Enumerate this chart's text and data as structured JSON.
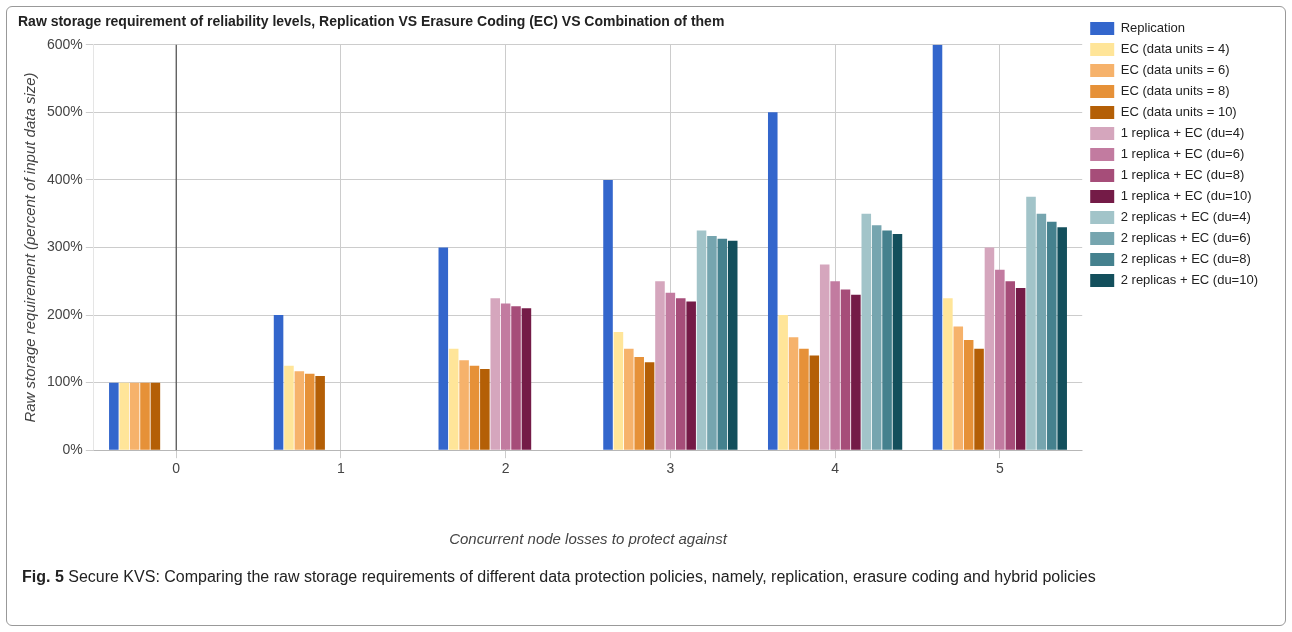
{
  "chart_data": {
    "type": "bar",
    "title": "Raw storage requirement of reliability levels, Replication VS Erasure Coding (EC) VS Combination of them",
    "xlabel": "Concurrent node losses to protect against",
    "ylabel": "Raw storage requirement (percent of input data size)",
    "categories": [
      "0",
      "1",
      "2",
      "3",
      "4",
      "5"
    ],
    "ylim": [
      0,
      600
    ],
    "yticks": [
      {
        "value": 0,
        "label": "0%"
      },
      {
        "value": 100,
        "label": "100%"
      },
      {
        "value": 200,
        "label": "200%"
      },
      {
        "value": 300,
        "label": "300%"
      },
      {
        "value": 400,
        "label": "400%"
      },
      {
        "value": 500,
        "label": "500%"
      },
      {
        "value": 600,
        "label": "600%"
      }
    ],
    "grid": true,
    "legend": "right",
    "ref_lines": [
      {
        "axis": "x",
        "value": "0",
        "color": "#333333"
      }
    ],
    "annotations": [
      "Fig. 5 Secure KVS: Comparing the raw storage requirements of different data protection policies, namely, replication, erasure coding and hybrid policies"
    ],
    "series": [
      {
        "name": "Replication",
        "color": "#3366cc",
        "values": [
          100,
          200,
          300,
          400,
          500,
          600
        ]
      },
      {
        "name": "EC (data units = 4)",
        "color": "#ffe599",
        "values": [
          100,
          125,
          150,
          175,
          200,
          225
        ]
      },
      {
        "name": "EC (data units = 6)",
        "color": "#f6b26b",
        "values": [
          100,
          117,
          133,
          150,
          167,
          183
        ]
      },
      {
        "name": "EC (data units = 8)",
        "color": "#e69138",
        "values": [
          100,
          113,
          125,
          138,
          150,
          163
        ]
      },
      {
        "name": "EC (data units = 10)",
        "color": "#b45f06",
        "values": [
          100,
          110,
          120,
          130,
          140,
          150
        ]
      },
      {
        "name": "1 replica + EC (du=4)",
        "color": "#d5a6bd",
        "values": [
          null,
          null,
          225,
          250,
          275,
          300
        ]
      },
      {
        "name": "1 replica + EC (du=6)",
        "color": "#c27ba0",
        "values": [
          null,
          null,
          217,
          233,
          250,
          267
        ]
      },
      {
        "name": "1 replica + EC (du=8)",
        "color": "#a64d79",
        "values": [
          null,
          null,
          213,
          225,
          238,
          250
        ]
      },
      {
        "name": "1 replica + EC (du=10)",
        "color": "#741b47",
        "values": [
          null,
          null,
          210,
          220,
          230,
          240
        ]
      },
      {
        "name": "2 replicas + EC (du=4)",
        "color": "#a2c4c9",
        "values": [
          null,
          null,
          null,
          325,
          350,
          375
        ]
      },
      {
        "name": "2 replicas + EC (du=6)",
        "color": "#76a5af",
        "values": [
          null,
          null,
          null,
          317,
          333,
          350
        ]
      },
      {
        "name": "2 replicas + EC (du=8)",
        "color": "#45818e",
        "values": [
          null,
          null,
          null,
          313,
          325,
          338
        ]
      },
      {
        "name": "2 replicas + EC (du=10)",
        "color": "#134f5c",
        "values": [
          null,
          null,
          null,
          310,
          320,
          330
        ]
      }
    ]
  }
}
